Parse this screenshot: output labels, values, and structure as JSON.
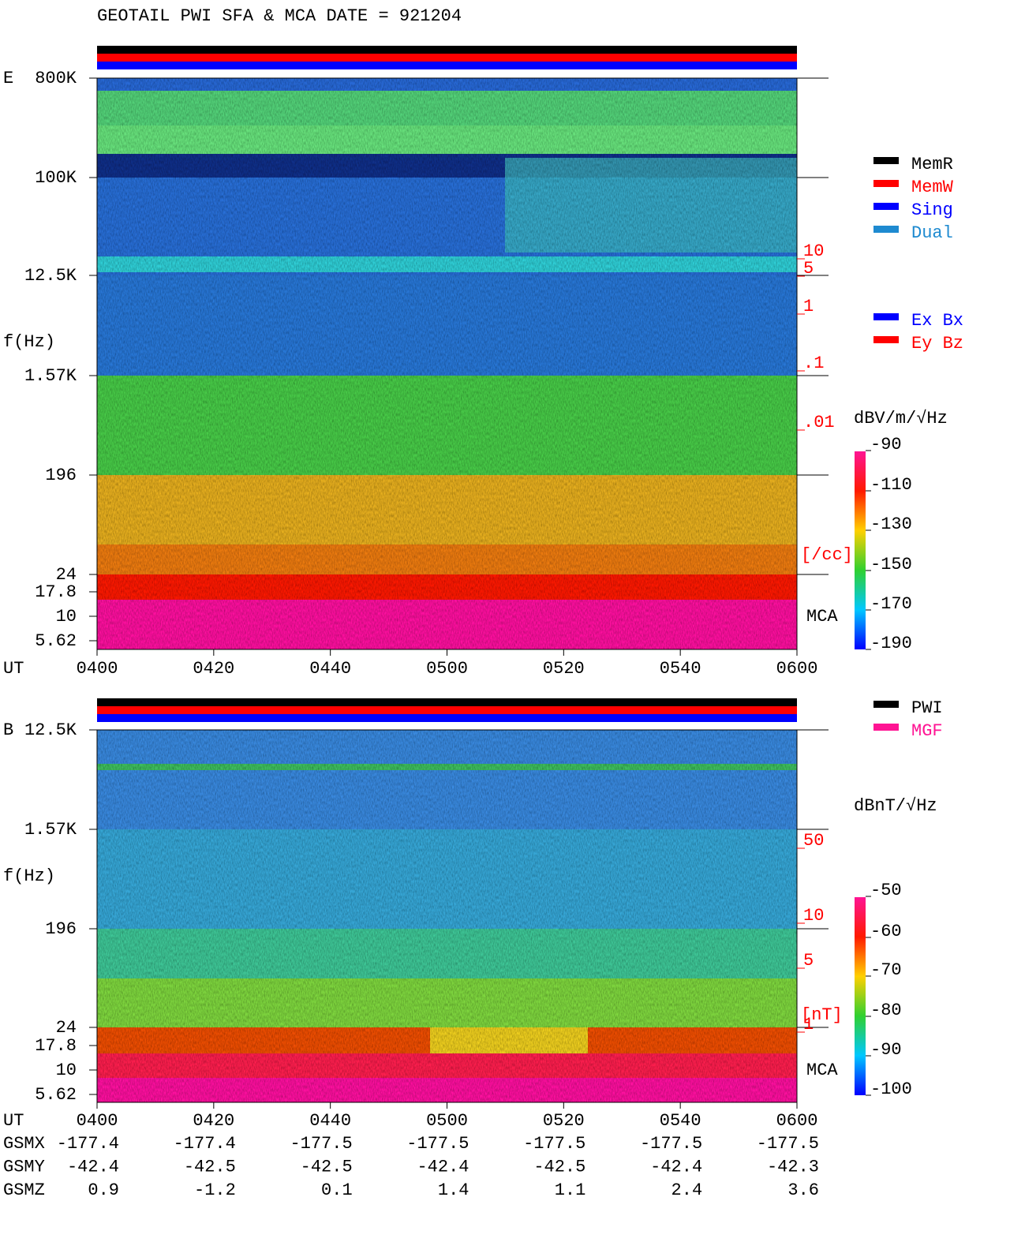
{
  "title": "GEOTAIL  PWI SFA & MCA   DATE = 921204",
  "panels": [
    {
      "label": "E",
      "y_axis_label": "f(Hz)",
      "freq_ticks": [
        "800K",
        "100K",
        "12.5K",
        "1.57K",
        "196",
        "24",
        "17.8",
        "10",
        "5.62"
      ],
      "right_ticks": [
        "10",
        "5",
        "1",
        ".1",
        ".01"
      ],
      "right_unit": "[/cc]",
      "mca": "MCA",
      "colorbar_unit": "dBV/m/√Hz",
      "colorbar_ticks": [
        -90,
        -110,
        -130,
        -150,
        -170,
        -190
      ],
      "legend": [
        {
          "name": "MemR",
          "color": "#000000"
        },
        {
          "name": "MemW",
          "color": "#ff0000"
        },
        {
          "name": "Sing",
          "color": "#0000ff"
        },
        {
          "name": "Dual",
          "color": "#1e8ad0"
        }
      ],
      "legend2": [
        {
          "name": "Ex Bx",
          "color": "#0000ff"
        },
        {
          "name": "Ey Bz",
          "color": "#ff0000"
        }
      ],
      "time_label": "UT",
      "times": [
        "0400",
        "0420",
        "0440",
        "0500",
        "0520",
        "0540",
        "0600"
      ]
    },
    {
      "label": "B",
      "y_axis_label": "f(Hz)",
      "freq_ticks": [
        "12.5K",
        "1.57K",
        "196",
        "24",
        "17.8",
        "10",
        "5.62"
      ],
      "right_ticks": [
        "50",
        "10",
        "5",
        "1"
      ],
      "right_unit": "[nT]",
      "mca": "MCA",
      "colorbar_unit": "dBnT/√Hz",
      "colorbar_ticks": [
        -50,
        -60,
        -70,
        -80,
        -90,
        -100
      ],
      "legend": [
        {
          "name": "PWI",
          "color": "#000000"
        },
        {
          "name": "MGF",
          "color": "#ff1493"
        }
      ],
      "time_label": "UT",
      "times": [
        "0400",
        "0420",
        "0440",
        "0500",
        "0520",
        "0540",
        "0600"
      ]
    }
  ],
  "orbit": [
    {
      "label": "GSMX",
      "values": [
        -177.4,
        -177.4,
        -177.5,
        -177.5,
        -177.5,
        -177.5,
        -177.5
      ]
    },
    {
      "label": "GSMY",
      "values": [
        -42.4,
        -42.5,
        -42.5,
        -42.4,
        -42.5,
        -42.4,
        -42.3
      ]
    },
    {
      "label": "GSMZ",
      "values": [
        0.9,
        -1.2,
        0.1,
        1.4,
        1.1,
        2.4,
        3.6
      ]
    }
  ]
}
